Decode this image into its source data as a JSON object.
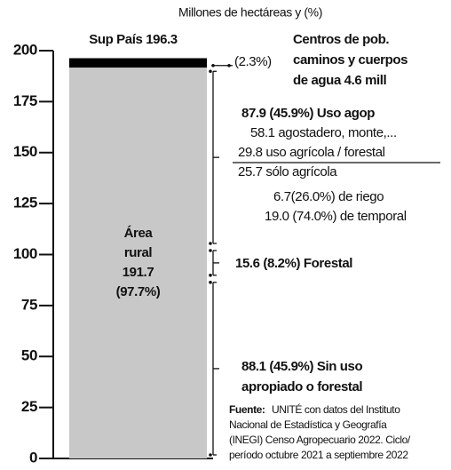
{
  "chart_data": {
    "type": "stacked_column",
    "subtitle": "Millones de hectáreas y (%)",
    "ylim": [
      0,
      200
    ],
    "yticks": [
      0,
      25,
      50,
      75,
      100,
      125,
      150,
      175,
      200
    ],
    "bar_label": "Sup País 196.3",
    "segments": [
      {
        "value": 191.7,
        "color": "#c8c8c8",
        "label_lines": [
          "Área",
          "rural",
          "191.7",
          "(97.7%)"
        ]
      },
      {
        "value": 4.6,
        "color": "#000000",
        "share": "(2.3%)",
        "label_lines": [
          "Centros de pob.",
          "caminos y cuerpos",
          "de agua 4.6 mill"
        ]
      }
    ],
    "brackets": [
      {
        "value": 88.1,
        "lines": [
          "88.1 (45.9%) Sin uso",
          "apropiado o forestal"
        ]
      },
      {
        "value": 15.6,
        "lines": [
          "15.6 (8.2%) Forestal"
        ]
      },
      {
        "value": 87.9,
        "lines": [
          "87.9 (45.9%) Uso agop",
          "58.1 agostadero, monte,...",
          "29.8 uso agrícola / forestal",
          "25.7 sólo agrícola",
          "6.7(26.0%) de riego",
          "19.0 (74.0%) de temporal"
        ]
      }
    ],
    "source": {
      "label": "Fuente:",
      "lines": [
        "UNITÉ con datos del Instituto",
        "Nacional de Estadística y Geografía",
        "(INEGI) Censo Agropecuario 2022. Ciclo/",
        "período octubre 2021 a septiembre 2022"
      ]
    }
  }
}
